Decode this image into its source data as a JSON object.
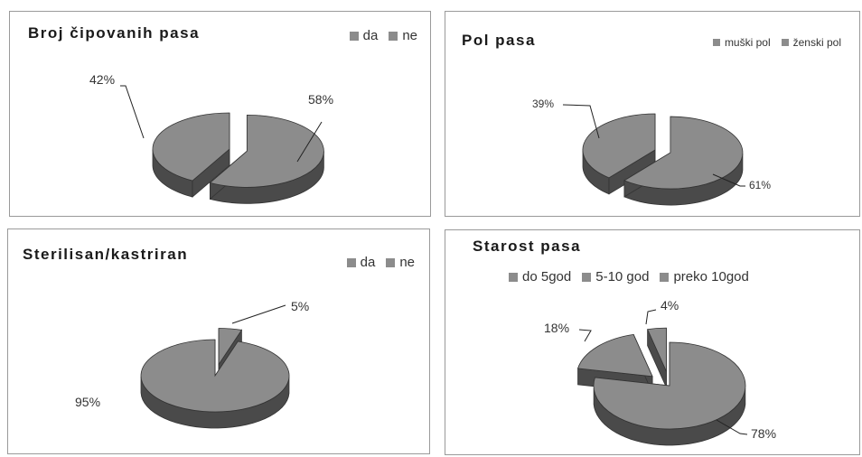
{
  "chart_data": [
    {
      "type": "pie",
      "title": "Broj čipovanih pasa",
      "categories": [
        "da",
        "ne"
      ],
      "values": [
        58,
        42
      ],
      "labels": [
        "58%",
        "42%"
      ],
      "legend_position": "top-right",
      "colors": [
        "#8c8c8c",
        "#8c8c8c"
      ]
    },
    {
      "type": "pie",
      "title": "Pol pasa",
      "categories": [
        "muški pol",
        "ženski pol"
      ],
      "values": [
        61,
        39
      ],
      "labels": [
        "61%",
        "39%"
      ],
      "legend_position": "top-right",
      "colors": [
        "#8c8c8c",
        "#8c8c8c"
      ]
    },
    {
      "type": "pie",
      "title": "Sterilisan/kastriran",
      "categories": [
        "da",
        "ne"
      ],
      "values": [
        5,
        95
      ],
      "labels": [
        "5%",
        "95%"
      ],
      "legend_position": "top-right",
      "colors": [
        "#8c8c8c",
        "#8c8c8c"
      ]
    },
    {
      "type": "pie",
      "title": "Starost pasa",
      "categories": [
        "do 5god",
        "5-10 god",
        "preko 10god"
      ],
      "values": [
        78,
        18,
        4
      ],
      "labels": [
        "78%",
        "18%",
        "4%"
      ],
      "legend_position": "top",
      "colors": [
        "#8c8c8c",
        "#8c8c8c",
        "#8c8c8c"
      ]
    }
  ],
  "style": {
    "slice_top": "#8c8c8c",
    "slice_side": "#4a4a4a",
    "outline": "#333333"
  }
}
